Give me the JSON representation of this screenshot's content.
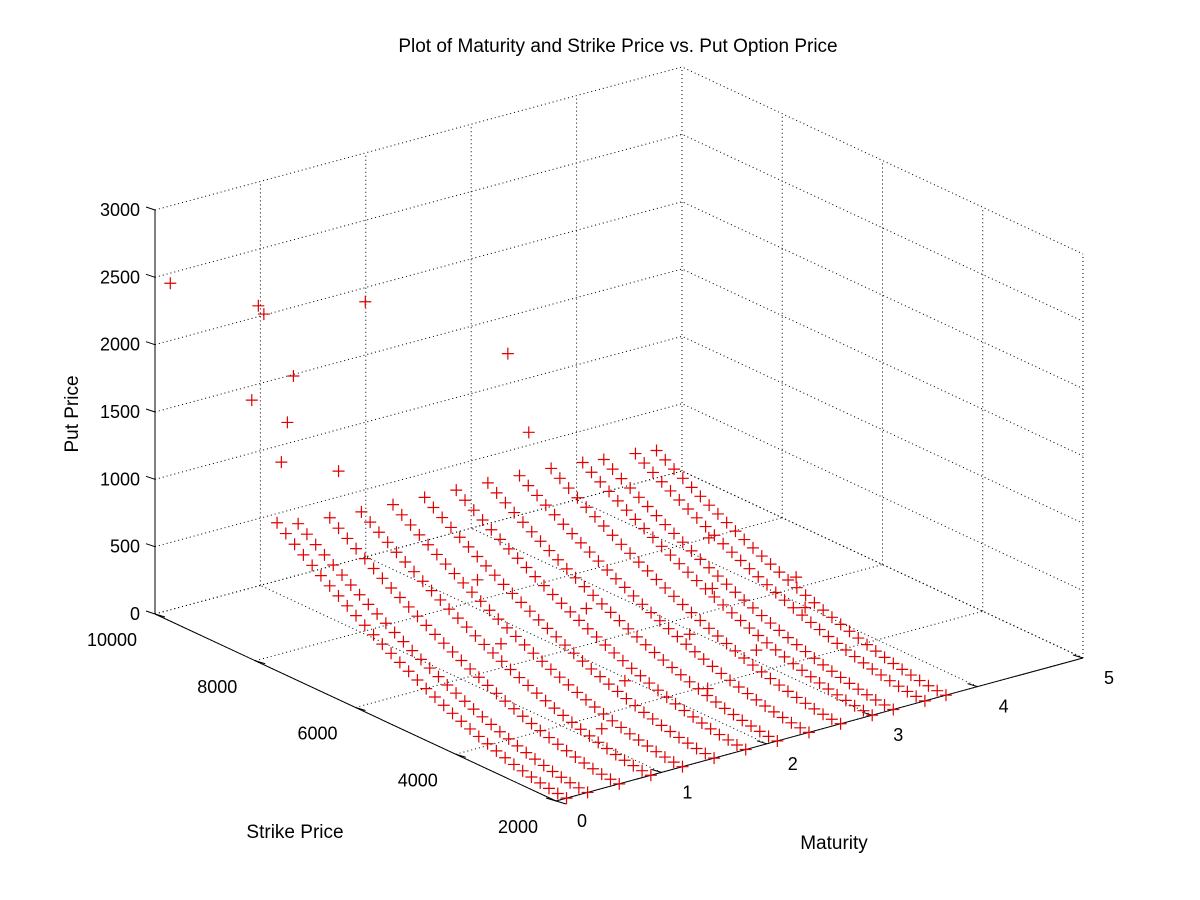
{
  "chart_data": {
    "type": "scatter",
    "projection": "3d",
    "title": "Plot of Maturity and Strike Price vs. Put Option Price",
    "xlabel": "Maturity",
    "ylabel": "Strike Price",
    "zlabel": "Put Price",
    "xlim": [
      0,
      5
    ],
    "ylim": [
      2000,
      10000
    ],
    "zlim": [
      0,
      3000
    ],
    "x_ticks": [
      "0",
      "1",
      "2",
      "3",
      "4",
      "5"
    ],
    "y_ticks": [
      "2000",
      "4000",
      "6000",
      "8000",
      "10000"
    ],
    "z_ticks": [
      "0",
      "500",
      "1000",
      "1500",
      "2000",
      "2500",
      "3000"
    ],
    "grid": true,
    "marker": "+",
    "marker_color": "#e00000",
    "maturities": [
      0.1,
      0.3,
      0.6,
      0.9,
      1.2,
      1.5,
      1.8,
      2.1,
      2.4,
      2.7,
      3.0,
      3.2,
      3.5,
      3.7
    ],
    "strike_range": [
      2000,
      7800
    ],
    "points_per_series": 34,
    "strike_step": 175,
    "put_price_at_max_strike": [
      1050,
      1000,
      980,
      960,
      950,
      940,
      930,
      920,
      910,
      900,
      880,
      860,
      840,
      820
    ],
    "put_price_curvature": 1.6,
    "extra_points": [
      {
        "x": 0.05,
        "y": 9800,
        "z": 2480
      },
      {
        "x": 0.6,
        "y": 9200,
        "z": 2300
      },
      {
        "x": 0.7,
        "y": 9300,
        "z": 2200
      },
      {
        "x": 0.6,
        "y": 8500,
        "z": 1900
      },
      {
        "x": 1.9,
        "y": 9800,
        "z": 1950
      },
      {
        "x": 3.3,
        "y": 9900,
        "z": 1250
      },
      {
        "x": 0.3,
        "y": 8700,
        "z": 1750
      },
      {
        "x": 0.4,
        "y": 8200,
        "z": 1650
      },
      {
        "x": 0.2,
        "y": 7900,
        "z": 1450
      },
      {
        "x": 0.6,
        "y": 7600,
        "z": 1350
      },
      {
        "x": 2.5,
        "y": 7800,
        "z": 1200
      },
      {
        "x": 1.0,
        "y": 5200,
        "z": 400
      },
      {
        "x": 1.3,
        "y": 6300,
        "z": 620
      },
      {
        "x": 2.0,
        "y": 5600,
        "z": 380
      },
      {
        "x": 2.6,
        "y": 4800,
        "z": 200
      },
      {
        "x": 3.1,
        "y": 5400,
        "z": 330
      },
      {
        "x": 3.4,
        "y": 6100,
        "z": 520
      },
      {
        "x": 1.7,
        "y": 4200,
        "z": 150
      },
      {
        "x": 2.2,
        "y": 3600,
        "z": 90
      },
      {
        "x": 2.9,
        "y": 4100,
        "z": 140
      },
      {
        "x": 3.6,
        "y": 4600,
        "z": 220
      },
      {
        "x": 1.1,
        "y": 3400,
        "z": 60
      },
      {
        "x": 3.8,
        "y": 5200,
        "z": 300
      }
    ]
  }
}
